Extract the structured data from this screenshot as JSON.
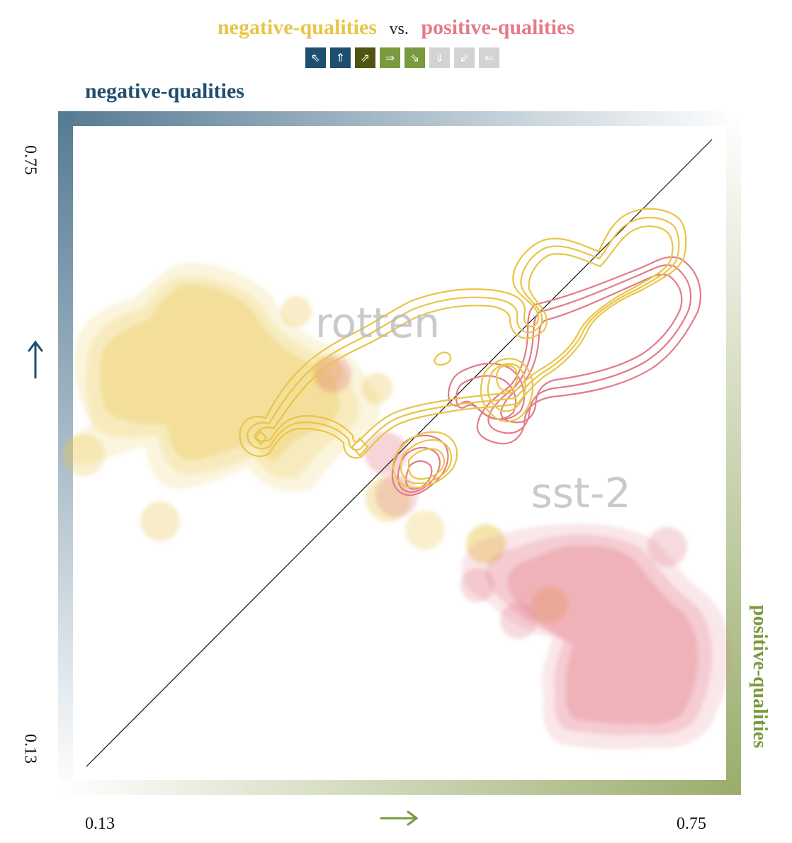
{
  "title": {
    "left": "negative-qualities",
    "middle": "vs.",
    "right": "positive-qualities"
  },
  "legend_arrows": [
    {
      "glyph": "⇖",
      "color": "#1f4e6e",
      "active": true
    },
    {
      "glyph": "⇑",
      "color": "#1f4e6e",
      "active": true
    },
    {
      "glyph": "⇗",
      "color": "#4f5410",
      "active": true
    },
    {
      "glyph": "⇒",
      "color": "#7a9a3e",
      "active": true
    },
    {
      "glyph": "⇘",
      "color": "#7a9a3e",
      "active": true
    },
    {
      "glyph": "⇓",
      "color": "#d3d3d3",
      "active": false
    },
    {
      "glyph": "⇙",
      "color": "#d3d3d3",
      "active": false
    },
    {
      "glyph": "⇐",
      "color": "#d3d3d3",
      "active": false
    }
  ],
  "axes": {
    "y_title": "negative-qualities",
    "x_title": "positive-qualities",
    "y_arrow": "↑",
    "x_arrow": "→",
    "x_ticks": [
      "0.13",
      "0.75"
    ],
    "y_ticks": [
      "0.13",
      "0.75"
    ]
  },
  "chart_data": {
    "type": "scatter",
    "subtype": "2d-density-contour",
    "xlim": [
      0.13,
      0.75
    ],
    "ylim": [
      0.13,
      0.75
    ],
    "reference_line": "y = x",
    "datasets": [
      {
        "name": "rotten",
        "color": "#e8c547",
        "style": "filled density"
      },
      {
        "name": "sst-2",
        "color": "#e37b88",
        "style": "filled density"
      }
    ],
    "contour_series": [
      {
        "name": "negative-qualities",
        "color": "#e8c547",
        "style": "contour lines"
      },
      {
        "name": "positive-qualities",
        "color": "#e37b88",
        "style": "contour lines"
      }
    ],
    "colors": {
      "neg": "#e8c547",
      "pos": "#e37b88",
      "y_axis": "#1f4e6e",
      "x_axis": "#7a9a3e"
    }
  }
}
